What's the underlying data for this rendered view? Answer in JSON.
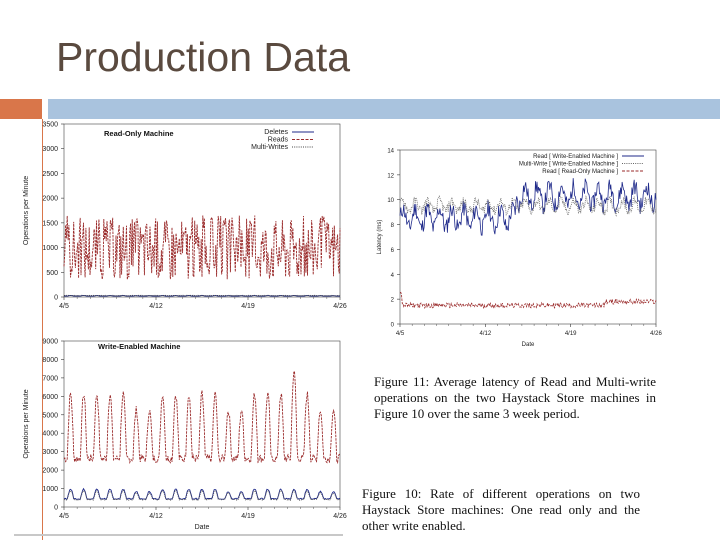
{
  "slide": {
    "title": "Production Data"
  },
  "colors": {
    "accent_orange": "#d9764a",
    "accent_blue": "#a9c3de",
    "red": "#9a2a2a",
    "blue": "#1f2a8a",
    "gray": "#777777"
  },
  "captions": {
    "fig11": "Figure 11: Average latency of Read and Multi-write operations on the two Haystack Store machines in Figure 10 over the same 3 week period.",
    "fig10": "Figure 10: Rate of different operations on two Haystack Store machines: One read only and the other write enabled."
  },
  "chart_data": [
    {
      "type": "line",
      "title": "Read-Only Machine",
      "xlabel": "",
      "ylabel": "Operations per Minute",
      "x_ticks": [
        "4/5",
        "4/12",
        "4/19",
        "4/26"
      ],
      "y_ticks": [
        0,
        500,
        1000,
        1500,
        2000,
        2500,
        3000,
        3500
      ],
      "y_tick_labels": [
        "0",
        "500",
        "1000",
        "1500",
        "2000",
        "2500",
        "3000",
        "3500"
      ],
      "ylim": [
        0,
        3500
      ],
      "legend": "top-right",
      "series": [
        {
          "name": "Deletes",
          "color": "#1f2a8a",
          "style": "solid",
          "base": 20,
          "amp": 10
        },
        {
          "name": "Reads",
          "color": "#9a2a2a",
          "style": "dashed",
          "base": 1000,
          "amp": 1300
        },
        {
          "name": "Multi-Writes",
          "color": "#444444",
          "style": "dotted",
          "base": 30,
          "amp": 10
        }
      ]
    },
    {
      "type": "line",
      "title": "Write-Enabled Machine",
      "xlabel": "Date",
      "ylabel": "Operations per Minute",
      "x_ticks": [
        "4/5",
        "4/12",
        "4/19",
        "4/26"
      ],
      "y_ticks": [
        0,
        1000,
        2000,
        3000,
        4000,
        5000,
        6000,
        7000,
        8000,
        9000
      ],
      "y_tick_labels": [
        "0",
        "1000",
        "2000",
        "3000",
        "4000",
        "5000",
        "6000",
        "7000",
        "8000",
        "9000"
      ],
      "ylim": [
        0,
        9000
      ],
      "legend": "none",
      "series": [
        {
          "name": "Reads",
          "color": "#9a2a2a",
          "style": "dashed",
          "base": 3000,
          "amp": 3700
        },
        {
          "name": "Multi-Writes",
          "color": "#1f2a8a",
          "style": "solid",
          "base": 500,
          "amp": 550
        },
        {
          "name": "Deletes",
          "color": "#555555",
          "style": "dotted",
          "base": 450,
          "amp": 500
        }
      ]
    },
    {
      "type": "line",
      "title": "",
      "xlabel": "Date",
      "ylabel": "Latency (ms)",
      "x_ticks": [
        "4/5",
        "4/12",
        "4/19",
        "4/26"
      ],
      "y_ticks": [
        0,
        2,
        4,
        6,
        8,
        10,
        12,
        14
      ],
      "y_tick_labels": [
        "0",
        "2",
        "4",
        "6",
        "8",
        "10",
        "12",
        "14"
      ],
      "ylim": [
        0,
        14
      ],
      "legend": "top-right",
      "series": [
        {
          "name": "Read [ Write-Enabled Machine ]",
          "color": "#1f2a8a",
          "style": "solid",
          "base": 8.5,
          "amp": 2.8
        },
        {
          "name": "Multi-Write [ Write-Enabled Machine ]",
          "color": "#666666",
          "style": "dotted",
          "base": 9.5,
          "amp": 0.8
        },
        {
          "name": "Read [ Read-Only Machine ]",
          "color": "#9a2a2a",
          "style": "dashed",
          "base": 1.5,
          "amp": 0.4
        }
      ]
    }
  ]
}
